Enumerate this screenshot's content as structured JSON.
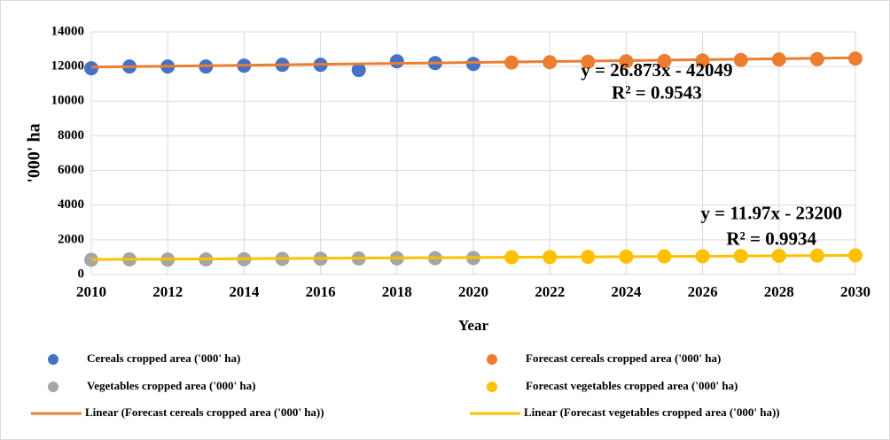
{
  "chart_data": {
    "type": "scatter",
    "x_label": "Year",
    "y_label": "'000' ha",
    "xlim": [
      2010,
      2030
    ],
    "xticks": [
      2010,
      2012,
      2014,
      2016,
      2018,
      2020,
      2022,
      2024,
      2026,
      2028,
      2030
    ],
    "ylim": [
      0,
      14000
    ],
    "yticks": [
      0,
      2000,
      4000,
      6000,
      8000,
      10000,
      12000,
      14000
    ],
    "grid": true,
    "legend": "bottom",
    "series": [
      {
        "name": "Cereals cropped area ('000' ha)",
        "type": "scatter",
        "color": "#4472c4",
        "x": [
          2010,
          2011,
          2012,
          2013,
          2014,
          2015,
          2016,
          2017,
          2018,
          2019,
          2020
        ],
        "values": [
          11900,
          12000,
          12000,
          12000,
          12050,
          12100,
          12100,
          11800,
          12300,
          12200,
          12150
        ]
      },
      {
        "name": "Forecast cereals cropped area ('000' ha)",
        "type": "scatter",
        "color": "#ed7d31",
        "x": [
          2021,
          2022,
          2023,
          2024,
          2025,
          2026,
          2027,
          2028,
          2029,
          2030
        ],
        "values": [
          12230,
          12250,
          12280,
          12300,
          12320,
          12350,
          12380,
          12410,
          12430,
          12460
        ]
      },
      {
        "name": "Vegetables cropped area ('000' ha)",
        "type": "scatter",
        "color": "#a5a5a5",
        "x": [
          2010,
          2011,
          2012,
          2013,
          2014,
          2015,
          2016,
          2017,
          2018,
          2019,
          2020
        ],
        "values": [
          850,
          870,
          860,
          870,
          880,
          900,
          910,
          920,
          930,
          940,
          950
        ]
      },
      {
        "name": "Forecast vegetables cropped area ('000' ha)",
        "type": "scatter",
        "color": "#ffc000",
        "x": [
          2021,
          2022,
          2023,
          2024,
          2025,
          2026,
          2027,
          2028,
          2029,
          2030
        ],
        "values": [
          990,
          1005,
          1015,
          1030,
          1040,
          1050,
          1065,
          1075,
          1090,
          1100
        ]
      },
      {
        "name": "Linear (Forecast cereals cropped area ('000' ha))",
        "type": "line",
        "color": "#ed7d31",
        "x": [
          2010,
          2030
        ],
        "values": [
          11966,
          12503
        ]
      },
      {
        "name": "Linear (Forecast vegetables cropped area ('000' ha))",
        "type": "line",
        "color": "#ffc000",
        "x": [
          2010,
          2030
        ],
        "values": [
          860,
          1099
        ]
      }
    ],
    "annotations": [
      {
        "text": "y = 26.873x - 42049",
        "x": 2024.8,
        "y": 11700
      },
      {
        "text": "R² = 0.9543",
        "x": 2024.8,
        "y": 10400
      },
      {
        "text": "y = 11.97x - 23200",
        "x": 2027.8,
        "y": 3450
      },
      {
        "text": "R² = 0.9934",
        "x": 2027.8,
        "y": 1950
      }
    ]
  }
}
